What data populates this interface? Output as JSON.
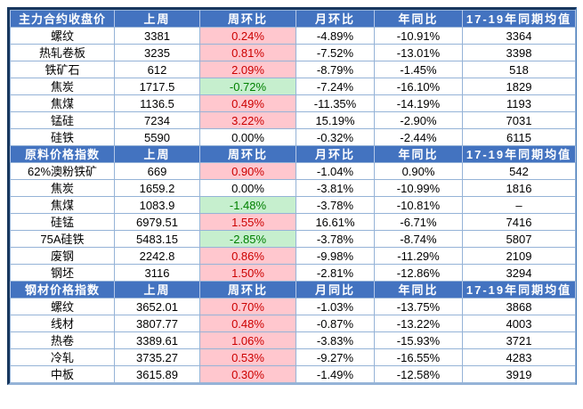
{
  "chart_data": {
    "type": "table",
    "sections": [
      {
        "header": [
          "主力合约收盘价",
          "上周",
          "周环比",
          "月环比",
          "年同比",
          "17-19年同期均值"
        ],
        "rows": [
          {
            "label": "螺纹",
            "last_week": "3381",
            "wow": "0.24%",
            "wow_trend": "up",
            "mom": "-4.89%",
            "yoy": "-10.91%",
            "avg": "3364"
          },
          {
            "label": "热轧卷板",
            "last_week": "3235",
            "wow": "0.81%",
            "wow_trend": "up",
            "mom": "-7.52%",
            "yoy": "-13.01%",
            "avg": "3398"
          },
          {
            "label": "铁矿石",
            "last_week": "612",
            "wow": "2.09%",
            "wow_trend": "up",
            "mom": "-8.79%",
            "yoy": "-1.45%",
            "avg": "518"
          },
          {
            "label": "焦炭",
            "last_week": "1717.5",
            "wow": "-0.72%",
            "wow_trend": "down",
            "mom": "-7.24%",
            "yoy": "-16.10%",
            "avg": "1829"
          },
          {
            "label": "焦煤",
            "last_week": "1136.5",
            "wow": "0.49%",
            "wow_trend": "up",
            "mom": "-11.35%",
            "yoy": "-14.19%",
            "avg": "1193"
          },
          {
            "label": "锰硅",
            "last_week": "7234",
            "wow": "3.22%",
            "wow_trend": "up",
            "mom": "15.19%",
            "yoy": "-2.90%",
            "avg": "7031"
          },
          {
            "label": "硅铁",
            "last_week": "5590",
            "wow": "0.00%",
            "wow_trend": "flat",
            "mom": "-0.32%",
            "yoy": "-2.44%",
            "avg": "6115"
          }
        ]
      },
      {
        "header": [
          "原料价格指数",
          "上周",
          "周环比",
          "月环比",
          "年同比",
          "17-19年同期均值"
        ],
        "rows": [
          {
            "label": "62%澳粉铁矿",
            "last_week": "669",
            "wow": "0.90%",
            "wow_trend": "up",
            "mom": "-1.04%",
            "yoy": "0.90%",
            "avg": "542"
          },
          {
            "label": "焦炭",
            "last_week": "1659.2",
            "wow": "0.00%",
            "wow_trend": "flat",
            "mom": "-3.81%",
            "yoy": "-10.99%",
            "avg": "1816"
          },
          {
            "label": "焦煤",
            "last_week": "1083.9",
            "wow": "-1.48%",
            "wow_trend": "down",
            "mom": "-3.78%",
            "yoy": "-10.81%",
            "avg": "–"
          },
          {
            "label": "硅锰",
            "last_week": "6979.51",
            "wow": "1.55%",
            "wow_trend": "up",
            "mom": "16.61%",
            "yoy": "-6.71%",
            "avg": "7416"
          },
          {
            "label": "75A硅铁",
            "last_week": "5483.15",
            "wow": "-2.85%",
            "wow_trend": "down",
            "mom": "-3.78%",
            "yoy": "-8.74%",
            "avg": "5807"
          },
          {
            "label": "废钢",
            "last_week": "2242.8",
            "wow": "0.86%",
            "wow_trend": "up",
            "mom": "-9.98%",
            "yoy": "-11.29%",
            "avg": "2109"
          },
          {
            "label": "钢坯",
            "last_week": "3116",
            "wow": "1.50%",
            "wow_trend": "up",
            "mom": "-2.81%",
            "yoy": "-12.86%",
            "avg": "3294"
          }
        ]
      },
      {
        "header": [
          "钢材价格指数",
          "上周",
          "周环比",
          "月同比",
          "年同比",
          "17-19年同期均值"
        ],
        "rows": [
          {
            "label": "螺纹",
            "last_week": "3652.01",
            "wow": "0.70%",
            "wow_trend": "up",
            "mom": "-1.03%",
            "yoy": "-13.75%",
            "avg": "3868"
          },
          {
            "label": "线材",
            "last_week": "3807.77",
            "wow": "0.48%",
            "wow_trend": "up",
            "mom": "-0.87%",
            "yoy": "-13.22%",
            "avg": "4003"
          },
          {
            "label": "热卷",
            "last_week": "3389.61",
            "wow": "1.06%",
            "wow_trend": "up",
            "mom": "-3.83%",
            "yoy": "-15.93%",
            "avg": "3721"
          },
          {
            "label": "冷轧",
            "last_week": "3735.27",
            "wow": "0.53%",
            "wow_trend": "up",
            "mom": "-9.27%",
            "yoy": "-16.55%",
            "avg": "4283"
          },
          {
            "label": "中板",
            "last_week": "3615.89",
            "wow": "0.30%",
            "wow_trend": "up",
            "mom": "-1.49%",
            "yoy": "-12.58%",
            "avg": "3919"
          }
        ]
      }
    ]
  },
  "colors": {
    "header_bg": "#4373C0",
    "header_text": "#FFFFFF",
    "grid_line": "#95B3D7",
    "outer_border_dark": "#17375E",
    "outer_border_right": "#4A7EBB",
    "positive_bg": "#FFC7CE",
    "positive_text": "#CC0000",
    "negative_bg": "#C6EFCE",
    "negative_text": "#008000",
    "cell_text": "#000000"
  }
}
